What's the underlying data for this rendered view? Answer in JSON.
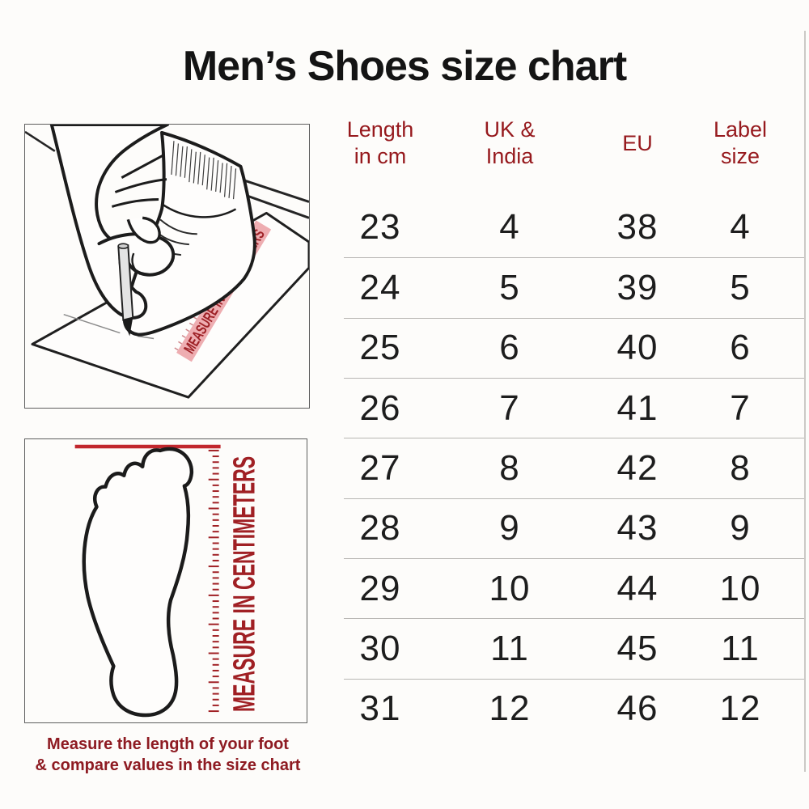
{
  "page": {
    "title": "Men’s Shoes size chart"
  },
  "size_table": {
    "headers": [
      {
        "line1": "Length",
        "line2": "in cm"
      },
      {
        "line1": "UK &",
        "line2": "India"
      },
      {
        "line1": "EU",
        "line2": ""
      },
      {
        "line1": "Label",
        "line2": "size"
      }
    ],
    "rows": [
      [
        "23",
        "4",
        "38",
        "4"
      ],
      [
        "24",
        "5",
        "39",
        "5"
      ],
      [
        "25",
        "6",
        "40",
        "6"
      ],
      [
        "26",
        "7",
        "41",
        "7"
      ],
      [
        "27",
        "8",
        "42",
        "8"
      ],
      [
        "28",
        "9",
        "43",
        "9"
      ],
      [
        "29",
        "10",
        "44",
        "10"
      ],
      [
        "30",
        "11",
        "45",
        "11"
      ],
      [
        "31",
        "12",
        "46",
        "12"
      ]
    ]
  },
  "chart_data": {
    "type": "table",
    "title": "Men’s Shoes size chart",
    "columns": [
      "Length in cm",
      "UK & India",
      "EU",
      "Label size"
    ],
    "rows": [
      [
        23,
        4,
        38,
        4
      ],
      [
        24,
        5,
        39,
        5
      ],
      [
        25,
        6,
        40,
        6
      ],
      [
        26,
        7,
        41,
        7
      ],
      [
        27,
        8,
        42,
        8
      ],
      [
        28,
        9,
        43,
        9
      ],
      [
        29,
        10,
        44,
        10
      ],
      [
        30,
        11,
        45,
        11
      ],
      [
        31,
        12,
        46,
        12
      ]
    ]
  },
  "illustrations": {
    "tracing_box": {
      "ruler_label": "MEASURE IN CENTIMETERS"
    },
    "foot_box": {
      "ruler_label": "MEASURE IN CENTIMETERS"
    }
  },
  "caption": {
    "line1": "Measure the length of your foot",
    "line2": "& compare values in the size chart"
  },
  "colors": {
    "header_red": "#96191d",
    "caption_red": "#8e1b22",
    "ruler_red": "#a02024",
    "accent_red": "#c1272d",
    "band_pink": "#eeadb1",
    "band_text_red": "#9e2126",
    "text_black": "#1d1d1d"
  }
}
